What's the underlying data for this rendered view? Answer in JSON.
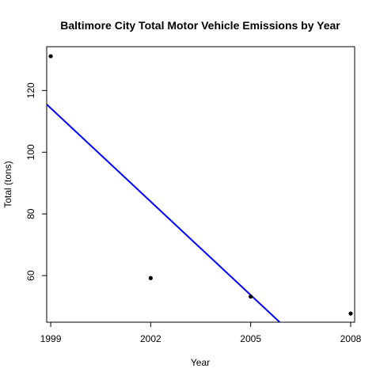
{
  "chart_data": {
    "type": "scatter",
    "title": "Baltimore City Total Motor Vehicle Emissions by Year",
    "xlabel": "Year",
    "ylabel": "Total (tons)",
    "xlim": [
      1998.88,
      2008.12
    ],
    "ylim": [
      44.9,
      134.2
    ],
    "x_ticks": [
      1999,
      2002,
      2005,
      2008
    ],
    "y_ticks": [
      60,
      80,
      100,
      120
    ],
    "grid": false,
    "legend": "none",
    "points": [
      {
        "x": 1999,
        "y": 131.1
      },
      {
        "x": 2002,
        "y": 59.2
      },
      {
        "x": 2005,
        "y": 53.2
      },
      {
        "x": 2008,
        "y": 47.7
      }
    ],
    "regression_line": {
      "intercept_at_1999": 114.3,
      "slope": -10.1,
      "color": "#0000ff"
    },
    "point_color": "#000000"
  }
}
